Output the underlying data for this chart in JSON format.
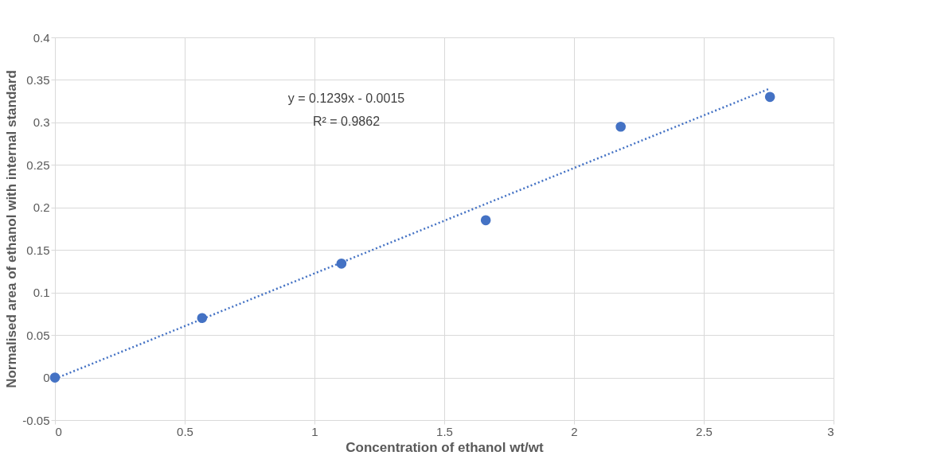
{
  "chart_data": {
    "type": "scatter",
    "xlabel": "Concentration of ethanol wt/wt",
    "ylabel": "Normalised area  of ethanol with internal standard",
    "x": [
      0,
      0.567,
      1.104,
      1.66,
      2.18,
      2.755
    ],
    "series": [
      {
        "color": "#4472c4",
        "marker": "circle",
        "values": [
          0,
          0.07,
          0.134,
          0.185,
          0.295,
          0.33
        ]
      },
      {
        "type": "line",
        "color": "#4472c4",
        "line_style": "dotted",
        "x": [
          0,
          2.755
        ],
        "values": [
          -0.0015,
          0.3399
        ]
      }
    ],
    "xlim": [
      0,
      3
    ],
    "xticks": [
      0,
      0.5,
      1,
      1.5,
      2,
      2.5,
      3
    ],
    "ylim": [
      -0.05,
      0.4
    ],
    "yticks": [
      -0.05,
      0,
      0.05,
      0.1,
      0.15,
      0.2,
      0.25,
      0.3,
      0.35,
      0.4
    ],
    "grid": true,
    "annotations": [
      "y = 0.1239x - 0.0015",
      "R² = 0.9862"
    ]
  }
}
